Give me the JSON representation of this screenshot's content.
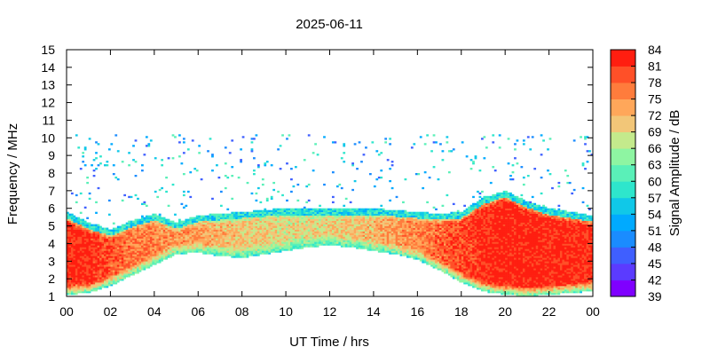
{
  "chart_data": {
    "type": "heatmap",
    "title": "2025-06-11",
    "xlabel": "UT Time / hrs",
    "ylabel": "Frequency / MHz",
    "colorbar_label": "Signal Amplitude / dB",
    "x_ticks": [
      "00",
      "02",
      "04",
      "06",
      "08",
      "10",
      "12",
      "14",
      "16",
      "18",
      "20",
      "22",
      "00"
    ],
    "xlim": [
      0,
      24
    ],
    "y_ticks": [
      "1",
      "2",
      "3",
      "4",
      "5",
      "6",
      "7",
      "8",
      "9",
      "10",
      "11",
      "12",
      "13",
      "14",
      "15"
    ],
    "ylim": [
      1,
      15
    ],
    "colorbar_ticks": [
      "39",
      "42",
      "45",
      "48",
      "51",
      "54",
      "57",
      "60",
      "63",
      "66",
      "69",
      "72",
      "75",
      "78",
      "81",
      "84"
    ],
    "zlim": [
      39,
      84
    ],
    "colorscale": [
      "#7f00ff",
      "#5b3bff",
      "#3f5fff",
      "#1a8cff",
      "#00aaff",
      "#10c8e8",
      "#2ee6cc",
      "#5af0b8",
      "#8ef5a2",
      "#c4ea8c",
      "#f2c678",
      "#ffa75a",
      "#ff7c3c",
      "#ff5028",
      "#ff1e10"
    ],
    "grid": false,
    "legend": "colorbar-right",
    "band_profile": {
      "hours": [
        0,
        1,
        2,
        3,
        4,
        5,
        6,
        7,
        8,
        9,
        10,
        11,
        12,
        13,
        14,
        15,
        16,
        17,
        18,
        19,
        20,
        21,
        22,
        23,
        24
      ],
      "upper_edge_mhz": [
        5.8,
        5.2,
        4.8,
        5.3,
        5.7,
        5.2,
        5.6,
        5.7,
        5.8,
        5.9,
        6.0,
        6.0,
        6.0,
        6.0,
        6.0,
        5.9,
        5.8,
        5.7,
        5.8,
        6.6,
        7.0,
        6.4,
        6.0,
        5.8,
        5.6
      ],
      "lower_edge_mhz": [
        1.1,
        1.2,
        1.6,
        2.2,
        2.8,
        3.4,
        3.5,
        3.3,
        3.2,
        3.4,
        3.6,
        3.8,
        3.9,
        3.8,
        3.6,
        3.4,
        3.1,
        2.5,
        1.8,
        1.3,
        1.1,
        1.0,
        1.1,
        1.2,
        1.3
      ],
      "peak_amplitude_db": [
        82,
        82,
        79,
        77,
        76,
        75,
        74,
        72,
        71,
        70,
        69,
        69,
        70,
        71,
        72,
        74,
        76,
        78,
        80,
        82,
        83,
        83,
        83,
        82,
        82
      ]
    },
    "notes_visible": []
  }
}
